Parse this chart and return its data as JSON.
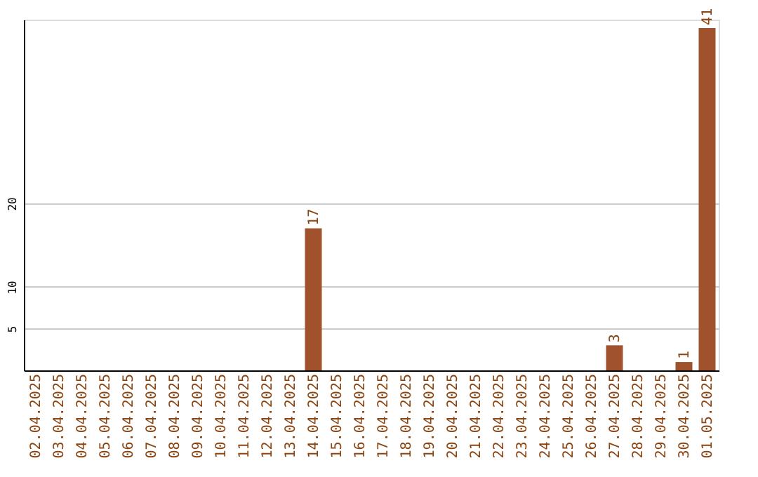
{
  "chart_data": {
    "type": "bar",
    "categories": [
      "02.04.2025",
      "03.04.2025",
      "04.04.2025",
      "05.04.2025",
      "06.04.2025",
      "07.04.2025",
      "08.04.2025",
      "09.04.2025",
      "10.04.2025",
      "11.04.2025",
      "12.04.2025",
      "13.04.2025",
      "14.04.2025",
      "15.04.2025",
      "16.04.2025",
      "17.04.2025",
      "18.04.2025",
      "19.04.2025",
      "20.04.2025",
      "21.04.2025",
      "22.04.2025",
      "23.04.2025",
      "24.04.2025",
      "25.04.2025",
      "26.04.2025",
      "27.04.2025",
      "28.04.2025",
      "29.04.2025",
      "30.04.2025",
      "01.05.2025"
    ],
    "values": [
      0,
      0,
      0,
      0,
      0,
      0,
      0,
      0,
      0,
      0,
      0,
      0,
      17,
      0,
      0,
      0,
      0,
      0,
      0,
      0,
      0,
      0,
      0,
      0,
      0,
      3,
      0,
      0,
      1,
      41
    ],
    "value_labels": [
      null,
      null,
      null,
      null,
      null,
      null,
      null,
      null,
      null,
      null,
      null,
      null,
      "17",
      null,
      null,
      null,
      null,
      null,
      null,
      null,
      null,
      null,
      null,
      null,
      null,
      "3",
      null,
      null,
      "1",
      "41"
    ],
    "color": "#a0522d",
    "ylim": [
      0,
      42
    ],
    "yticks": [
      5,
      10,
      20
    ],
    "grid": "y"
  }
}
